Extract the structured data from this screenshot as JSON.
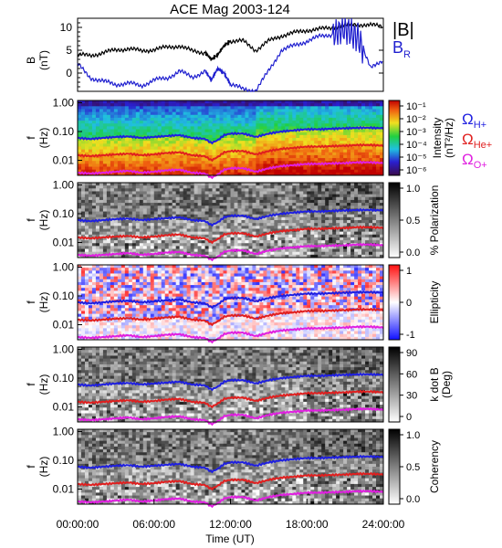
{
  "chart_data": [
    {
      "type": "line",
      "title": "ACE Mag 2003-124",
      "ylabel": "B",
      "yunit": "(nT)",
      "ylim": [
        -4,
        12
      ],
      "yticks": [
        "10",
        "5",
        "0"
      ],
      "legend": {
        "placement": "right",
        "entries": [
          "|B|",
          "BR"
        ]
      },
      "series": [
        {
          "name": "|B|",
          "color": "#000000",
          "x": [
            0,
            1,
            2,
            3,
            4,
            5,
            6,
            7,
            8,
            9,
            10,
            10.5,
            11,
            11.5,
            12,
            13,
            14,
            15,
            16,
            17,
            18,
            19,
            20,
            21,
            22,
            23,
            24
          ],
          "y": [
            4,
            3.8,
            4.5,
            5,
            5.4,
            4.8,
            5.2,
            5.6,
            6,
            4.8,
            4.5,
            3,
            4,
            6,
            7,
            7,
            5,
            7,
            8.2,
            8.8,
            9.4,
            9.6,
            10,
            10.4,
            10.7,
            10.5,
            10.2
          ]
        },
        {
          "name": "BR",
          "color": "#1f1fcf",
          "x": [
            0,
            1,
            2,
            3,
            4,
            5,
            6,
            7,
            8,
            9,
            10,
            10.5,
            11,
            11.5,
            12,
            13,
            14,
            15,
            16,
            17,
            18,
            19,
            20,
            21,
            22,
            23,
            24
          ],
          "y": [
            2,
            -1,
            -1.8,
            -2.5,
            -2.2,
            -2.8,
            -1.5,
            -1.2,
            0.5,
            -1,
            0.5,
            -1.5,
            1,
            0,
            -2.5,
            -3.5,
            -3.8,
            0.5,
            5,
            6,
            7,
            8,
            8.5,
            9.5,
            8,
            1,
            3
          ]
        }
      ]
    },
    {
      "type": "heatmap",
      "ylabel": "f",
      "yunit": "(Hz)",
      "yscale": "log",
      "ylim": [
        0.003,
        1.2
      ],
      "yticks": [
        "1.00",
        "0.10",
        "0.01"
      ],
      "colorbar": {
        "title": "Intensity",
        "unit": "(nT²/Hz)",
        "ticks": [
          "10⁻¹",
          "10⁻²",
          "10⁻³",
          "10⁻⁴",
          "10⁻⁵",
          "10⁻⁶"
        ],
        "scale": "rainbow"
      },
      "legend": {
        "placement": "right",
        "entries": [
          {
            "label": "ΩH+",
            "color": "#1f1fe0"
          },
          {
            "label": "ΩHe+",
            "color": "#e01f1f"
          },
          {
            "label": "ΩO+",
            "color": "#e01fe0"
          }
        ]
      }
    },
    {
      "type": "heatmap",
      "ylabel": "f",
      "yunit": "(Hz)",
      "yscale": "log",
      "yticks": [
        "1.00",
        "0.10",
        "0.01"
      ],
      "colorbar": {
        "title": "% Polarization",
        "ticks": [
          "1.0",
          "0.5",
          "0.0"
        ],
        "scale": "gray"
      }
    },
    {
      "type": "heatmap",
      "ylabel": "f",
      "yunit": "(Hz)",
      "yscale": "log",
      "yticks": [
        "1.00",
        "0.10",
        "0.01"
      ],
      "colorbar": {
        "title": "Ellipticity",
        "ticks": [
          "1",
          "0",
          "-1"
        ],
        "scale": "bluered"
      }
    },
    {
      "type": "heatmap",
      "ylabel": "f",
      "yunit": "(Hz)",
      "yscale": "log",
      "yticks": [
        "1.00",
        "0.10",
        "0.01"
      ],
      "colorbar": {
        "title": "k dot B",
        "unit": "(Deg)",
        "ticks": [
          "90",
          "60",
          "30",
          "0"
        ],
        "scale": "gray"
      }
    },
    {
      "type": "heatmap",
      "ylabel": "f",
      "yunit": "(Hz)",
      "yscale": "log",
      "yticks": [
        "1.00",
        "0.10",
        "0.01"
      ],
      "colorbar": {
        "title": "Coherency",
        "ticks": [
          "1.0",
          "0.5",
          "0.0"
        ],
        "scale": "gray"
      }
    }
  ],
  "gyrofrequency_lines": {
    "x": [
      0,
      1,
      2,
      3,
      4,
      5,
      6,
      7,
      8,
      9,
      10,
      10.5,
      11,
      11.5,
      12,
      13,
      14,
      15,
      16,
      17,
      18,
      19,
      20,
      21,
      22,
      23,
      24
    ],
    "H+": [
      0.06,
      0.055,
      0.06,
      0.065,
      0.068,
      0.06,
      0.065,
      0.07,
      0.075,
      0.06,
      0.056,
      0.04,
      0.05,
      0.075,
      0.085,
      0.085,
      0.065,
      0.085,
      0.1,
      0.11,
      0.12,
      0.12,
      0.125,
      0.13,
      0.135,
      0.135,
      0.13
    ],
    "He+": [
      0.015,
      0.014,
      0.015,
      0.016,
      0.017,
      0.015,
      0.016,
      0.018,
      0.019,
      0.015,
      0.014,
      0.01,
      0.013,
      0.019,
      0.021,
      0.021,
      0.016,
      0.021,
      0.025,
      0.027,
      0.03,
      0.03,
      0.031,
      0.032,
      0.034,
      0.034,
      0.032
    ],
    "O+": [
      0.0037,
      0.0035,
      0.0037,
      0.004,
      0.0043,
      0.0037,
      0.004,
      0.0045,
      0.0047,
      0.0037,
      0.0035,
      0.0025,
      0.0032,
      0.0047,
      0.0053,
      0.0053,
      0.004,
      0.0053,
      0.0063,
      0.0068,
      0.0075,
      0.0075,
      0.0078,
      0.008,
      0.0085,
      0.0085,
      0.008
    ]
  },
  "xaxis": {
    "label": "Time (UT)",
    "ticks": [
      "00:00:00",
      "06:00:00",
      "12:00:00",
      "18:00:00",
      "24:00:00"
    ],
    "range": [
      0,
      24
    ]
  }
}
